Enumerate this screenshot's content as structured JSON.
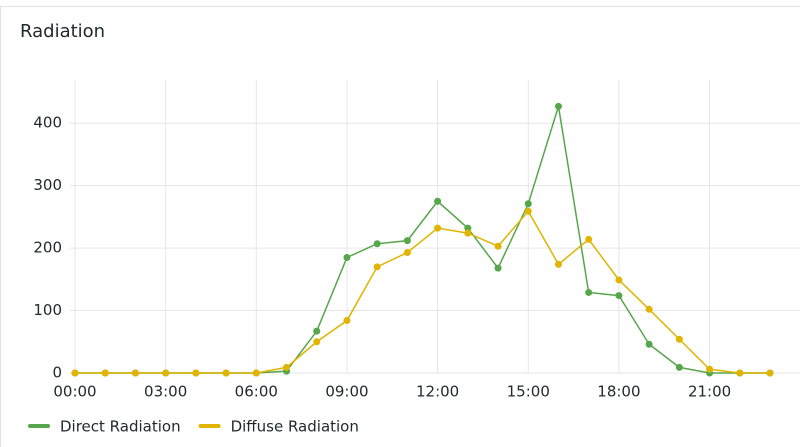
{
  "chart_data": {
    "type": "line",
    "title": "Radiation",
    "x": [
      0,
      1,
      2,
      3,
      4,
      5,
      6,
      7,
      8,
      9,
      10,
      11,
      12,
      13,
      14,
      15,
      16,
      17,
      18,
      19,
      20,
      21,
      22,
      23
    ],
    "series": [
      {
        "name": "Direct Radiation",
        "color": "#56a64b",
        "values": [
          0,
          0,
          0,
          0,
          0,
          0,
          0,
          3,
          67,
          185,
          207,
          212,
          275,
          232,
          168,
          271,
          427,
          129,
          124,
          46,
          9,
          0,
          0,
          0
        ]
      },
      {
        "name": "Diffuse Radiation",
        "color": "#e0b400",
        "values": [
          0,
          0,
          0,
          0,
          0,
          0,
          0,
          9,
          50,
          84,
          170,
          193,
          232,
          224,
          203,
          259,
          174,
          214,
          149,
          102,
          54,
          6,
          0,
          0
        ]
      }
    ],
    "xlim": [
      0,
      23
    ],
    "xticks": [
      {
        "value": 0,
        "label": "00:00"
      },
      {
        "value": 3,
        "label": "03:00"
      },
      {
        "value": 6,
        "label": "06:00"
      },
      {
        "value": 9,
        "label": "09:00"
      },
      {
        "value": 12,
        "label": "12:00"
      },
      {
        "value": 15,
        "label": "15:00"
      },
      {
        "value": 18,
        "label": "18:00"
      },
      {
        "value": 21,
        "label": "21:00"
      }
    ],
    "ylim": [
      0,
      450
    ],
    "yticks": [
      0,
      100,
      200,
      300,
      400
    ],
    "grid": true,
    "legend": "bottom"
  }
}
